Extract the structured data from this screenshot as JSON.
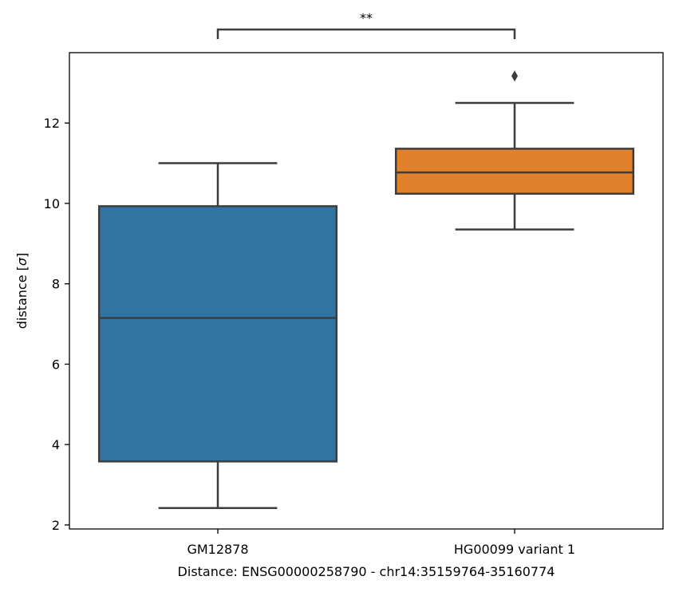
{
  "chart_data": {
    "type": "boxplot",
    "title": "",
    "xlabel": "Distance:  ENSG00000258790 - chr14:35159764-35160774",
    "ylabel_prefix": "distance [",
    "ylabel_symbol": "σ",
    "ylabel_suffix": "]",
    "ylim": [
      1.9,
      13.75
    ],
    "yticks": [
      2,
      4,
      6,
      8,
      10,
      12
    ],
    "ytick_labels": [
      "2",
      "4",
      "6",
      "8",
      "10",
      "12"
    ],
    "categories": [
      "GM12878",
      "HG00099 variant 1"
    ],
    "boxes": [
      {
        "category": "GM12878",
        "whisker_low": 2.42,
        "q1": 3.58,
        "median": 7.15,
        "q3": 9.93,
        "whisker_high": 11.0,
        "outliers": [],
        "color": "#3274a1"
      },
      {
        "category": "HG00099 variant 1",
        "whisker_low": 9.35,
        "q1": 10.24,
        "median": 10.77,
        "q3": 11.36,
        "whisker_high": 12.5,
        "outliers": [
          13.17
        ],
        "color": "#e1812c"
      }
    ],
    "significance": {
      "label": "**",
      "between": [
        "GM12878",
        "HG00099 variant 1"
      ]
    },
    "grid": false,
    "legend": "none"
  }
}
